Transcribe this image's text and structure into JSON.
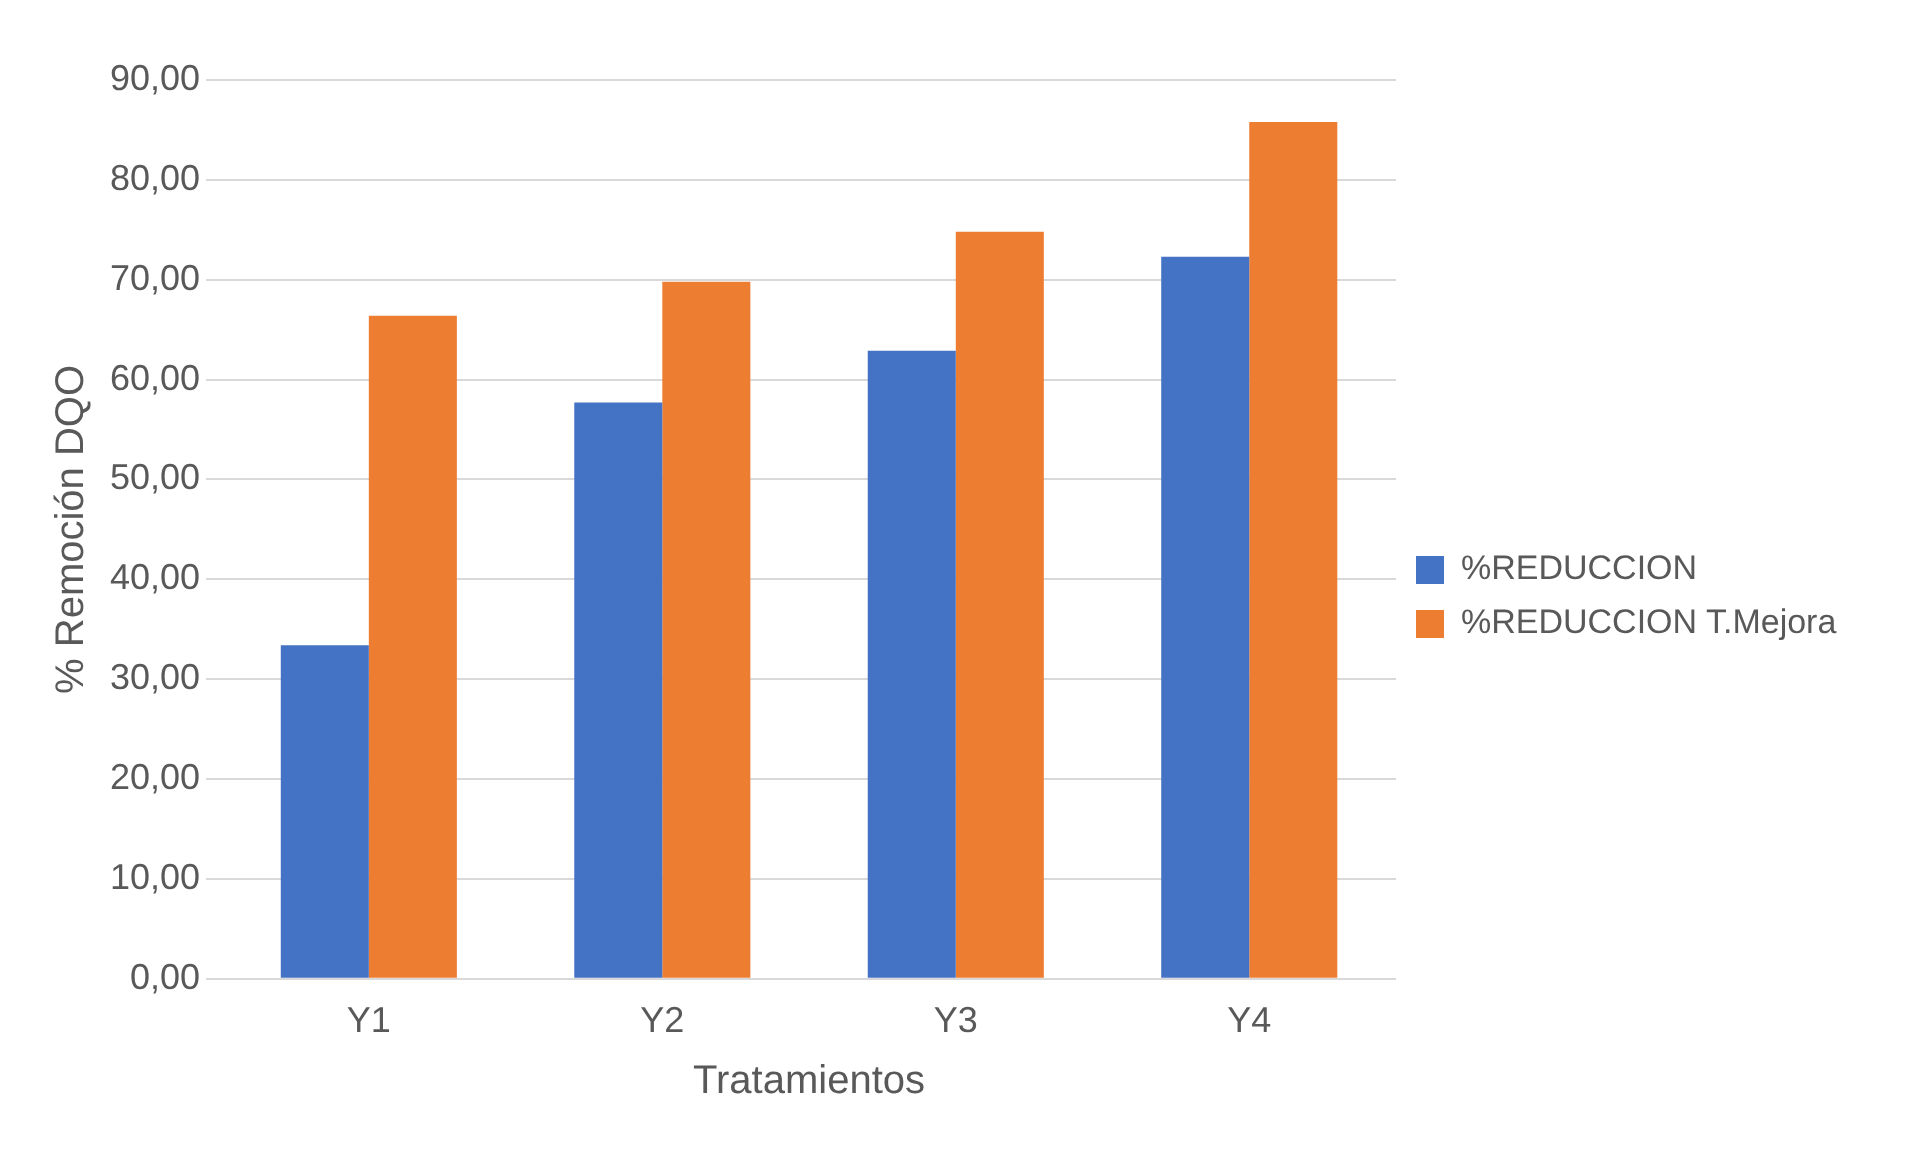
{
  "chart_data": {
    "type": "bar",
    "xlabel": "Tratamientos",
    "ylabel": "% Remoción DQO",
    "categories": [
      "Y1",
      "Y2",
      "Y3",
      "Y4"
    ],
    "series": [
      {
        "name": "%REDUCCION",
        "color": "#4472c4",
        "values": [
          33.4,
          57.7,
          62.9,
          72.3
        ]
      },
      {
        "name": "%REDUCCION T.Mejora",
        "color": "#ed7d31",
        "values": [
          66.4,
          69.8,
          74.8,
          85.8
        ]
      }
    ],
    "ylim": [
      0,
      90
    ],
    "yticks": [
      {
        "value": 0,
        "label": "0,00"
      },
      {
        "value": 10,
        "label": "10,00"
      },
      {
        "value": 20,
        "label": "20,00"
      },
      {
        "value": 30,
        "label": "30,00"
      },
      {
        "value": 40,
        "label": "40,00"
      },
      {
        "value": 50,
        "label": "50,00"
      },
      {
        "value": 60,
        "label": "60,00"
      },
      {
        "value": 70,
        "label": "70,00"
      },
      {
        "value": 80,
        "label": "80,00"
      },
      {
        "value": 90,
        "label": "90,00"
      }
    ],
    "grid": "y",
    "legend": "right"
  }
}
